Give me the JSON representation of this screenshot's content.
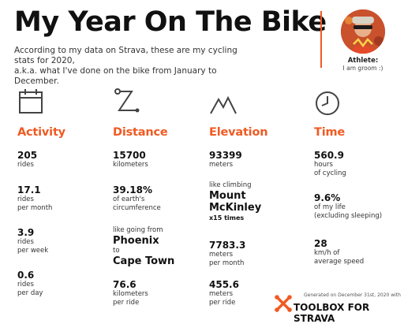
{
  "header": {
    "title": "My Year On The Bike",
    "intro_line1": "According to my data on Strava, these are my cycling stats for 2020,",
    "intro_line2": "a.k.a. what I've done on the bike from January to December."
  },
  "athlete": {
    "label": "Athlete:",
    "name": "I am groom :)"
  },
  "colors": {
    "accent": "#f05a22",
    "text": "#111111"
  },
  "activity": {
    "icon": "calendar-icon",
    "heading": "Activity",
    "rides_value": "205",
    "rides_label": "rides",
    "per_month_value": "17.1",
    "per_month_l1": "rides",
    "per_month_l2": "per month",
    "per_week_value": "3.9",
    "per_week_l1": "rides",
    "per_week_l2": "per week",
    "per_day_value": "0.6",
    "per_day_l1": "rides",
    "per_day_l2": "per day"
  },
  "distance": {
    "icon": "route-icon",
    "heading": "Distance",
    "km_value": "15700",
    "km_label": "kilometers",
    "earth_value": "39.18%",
    "earth_l1": "of earth's",
    "earth_l2": "circumference",
    "like_going": "like going from",
    "from_city": "Phoenix",
    "to_word": "to",
    "to_city": "Cape Town",
    "per_ride_value": "76.6",
    "per_ride_l1": "kilometers",
    "per_ride_l2": "per ride"
  },
  "elevation": {
    "icon": "mountain-icon",
    "heading": "Elevation",
    "meters_value": "93399",
    "meters_label": "meters",
    "like_climbing": "like climbing",
    "mountain_l1": "Mount",
    "mountain_l2": "McKinley",
    "times": "x15 times",
    "per_month_value": "7783.3",
    "per_month_l1": "meters",
    "per_month_l2": "per month",
    "per_ride_value": "455.6",
    "per_ride_l1": "meters",
    "per_ride_l2": "per ride"
  },
  "time": {
    "icon": "clock-icon",
    "heading": "Time",
    "hours_value": "560.9",
    "hours_l1": "hours",
    "hours_l2": "of cycling",
    "life_value": "9.6%",
    "life_l1": "of my life",
    "life_l2": "(excluding sleeping)",
    "speed_value": "28",
    "speed_l1": "km/h of",
    "speed_l2": "average speed"
  },
  "footer": {
    "generated": "Generated on December 31st, 2020 with",
    "brand": "TOOLBOX FOR STRAVA",
    "logo_icon": "wrench-cross-icon"
  }
}
